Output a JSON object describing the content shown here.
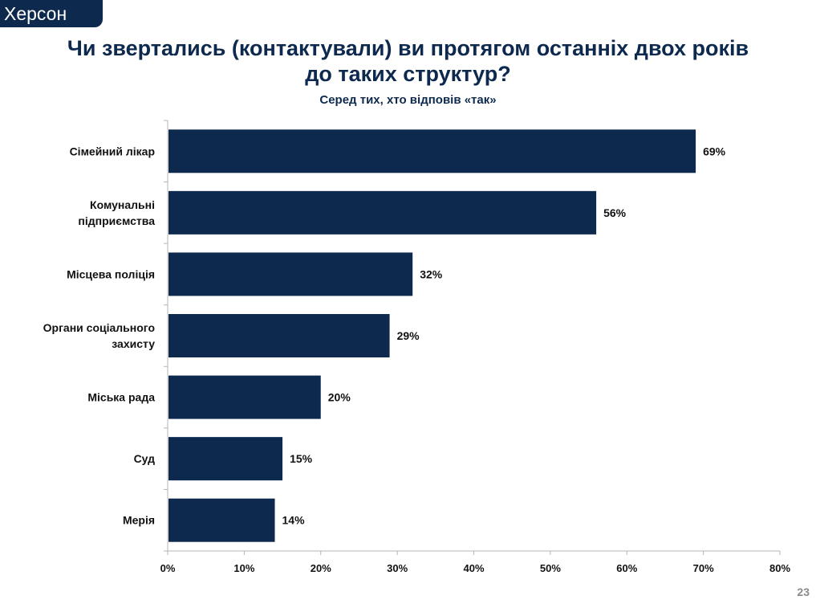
{
  "region": "Херсон",
  "title_line1": "Чи звертались (контактували) ви протягом останніх двох років",
  "title_line2": "до таких структур?",
  "subtitle": "Серед тих, хто відповів «так»",
  "page_number": "23",
  "colors": {
    "bar": "#0d2a4e",
    "header": "#0d2a4e"
  },
  "chart_data": {
    "type": "bar",
    "orientation": "horizontal",
    "categories": [
      [
        "Сімейний лікар"
      ],
      [
        "Комунальні",
        "підприємства"
      ],
      [
        "Місцева поліція"
      ],
      [
        "Органи соціального",
        "захисту"
      ],
      [
        "Міська рада"
      ],
      [
        "Суд"
      ],
      [
        "Мерія"
      ]
    ],
    "values": [
      69,
      56,
      32,
      29,
      20,
      15,
      14
    ],
    "value_labels": [
      "69%",
      "56%",
      "32%",
      "29%",
      "20%",
      "15%",
      "14%"
    ],
    "xlim": [
      0,
      80
    ],
    "xticks": [
      "0%",
      "10%",
      "20%",
      "30%",
      "40%",
      "50%",
      "60%",
      "70%",
      "80%"
    ],
    "grid": false
  }
}
